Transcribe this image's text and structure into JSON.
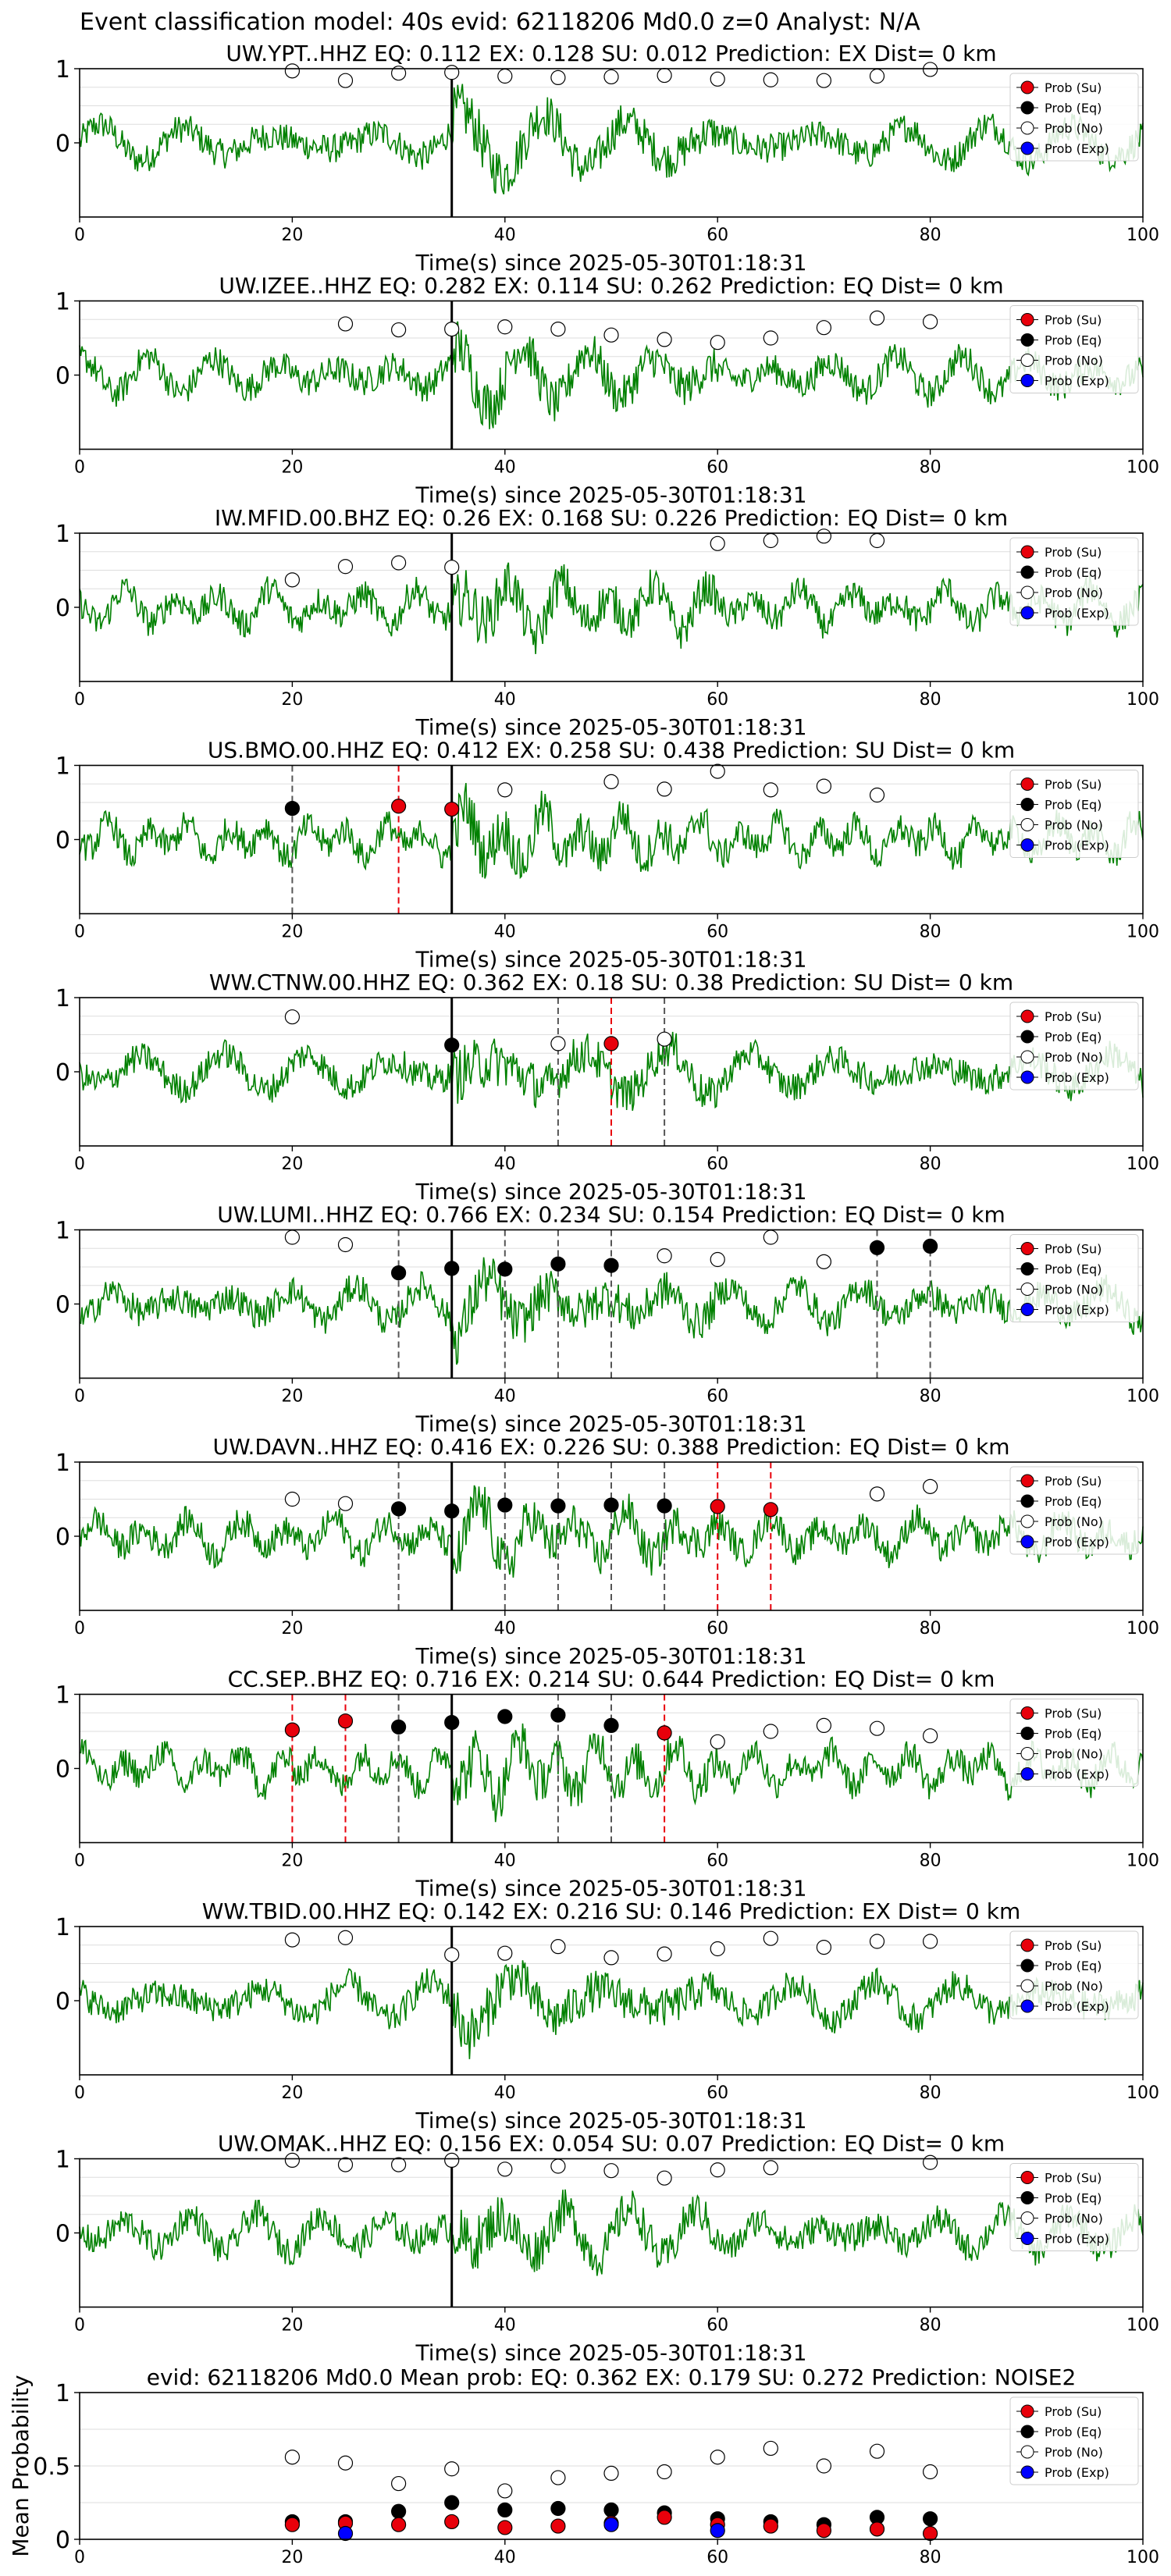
{
  "figure_title": "Event classification model: 40s evid: 62118206 Md0.0 z=0 Analyst: N/A",
  "colors": {
    "waveform": "#008000",
    "su": "#e8000b",
    "eq": "#000000",
    "no": "#ffffff",
    "exp": "#0000ff",
    "grid": "#dddddd",
    "pick": "#000000"
  },
  "legend": [
    "Prob (Su)",
    "Prob (Eq)",
    "Prob (No)",
    "Prob (Exp)"
  ],
  "chart_data": [
    {
      "type": "line",
      "title": "UW.YPT..HHZ    EQ: 0.112  EX: 0.128  SU: 0.012   Prediction: EX    Dist= 0 km",
      "xlabel": "Time(s) since 2025-05-30T01:18:31",
      "xlim": [
        0,
        100
      ],
      "ylim": [
        -1,
        1
      ],
      "xticks": [
        0,
        20,
        40,
        60,
        80,
        100
      ],
      "yticks": [
        1,
        0
      ],
      "pick_time": 35,
      "legend_position": "upper-right",
      "x": [
        20,
        25,
        30,
        35,
        40,
        45,
        50,
        55,
        60,
        65,
        70,
        75,
        80
      ],
      "su": [],
      "eq": [],
      "no": [
        0.97,
        0.84,
        0.94,
        0.95,
        0.9,
        0.88,
        0.89,
        0.91,
        0.86,
        0.85,
        0.84,
        0.9,
        0.99
      ],
      "exp": [],
      "vlines": []
    },
    {
      "type": "line",
      "title": "UW.IZEE..HHZ   EQ: 0.282  EX: 0.114  SU: 0.262   Prediction: EQ    Dist= 0 km",
      "xlabel": "Time(s) since 2025-05-30T01:18:31",
      "xlim": [
        0,
        100
      ],
      "ylim": [
        -1,
        1
      ],
      "xticks": [
        0,
        20,
        40,
        60,
        80,
        100
      ],
      "yticks": [
        1,
        0
      ],
      "pick_time": 35,
      "legend_position": "upper-right",
      "x": [
        25,
        30,
        35,
        40,
        45,
        50,
        55,
        60,
        65,
        70,
        75,
        80
      ],
      "su": [],
      "eq": [],
      "no": [
        0.69,
        0.61,
        0.62,
        0.65,
        0.62,
        0.54,
        0.48,
        0.44,
        0.5,
        0.64,
        0.77,
        0.72
      ],
      "exp": [],
      "vlines": []
    },
    {
      "type": "line",
      "title": "IW.MFID.00.BHZ   EQ: 0.26  EX: 0.168  SU: 0.226   Prediction: EQ    Dist= 0 km",
      "xlabel": "Time(s) since 2025-05-30T01:18:31",
      "xlim": [
        0,
        100
      ],
      "ylim": [
        -1,
        1
      ],
      "xticks": [
        0,
        20,
        40,
        60,
        80,
        100
      ],
      "yticks": [
        1,
        0
      ],
      "pick_time": 35,
      "legend_position": "upper-right",
      "x": [
        20,
        25,
        30,
        35,
        60,
        65,
        70,
        75
      ],
      "su": [],
      "eq": [],
      "no": [
        0.37,
        0.55,
        0.6,
        0.54,
        0.86,
        0.9,
        0.96,
        0.9
      ],
      "exp": [],
      "vlines": []
    },
    {
      "type": "line",
      "title": "US.BMO.00.HHZ   EQ: 0.412  EX: 0.258  SU: 0.438   Prediction: SU    Dist= 0 km",
      "xlabel": "Time(s) since 2025-05-30T01:18:31",
      "xlim": [
        0,
        100
      ],
      "ylim": [
        -1,
        1
      ],
      "xticks": [
        0,
        20,
        40,
        60,
        80,
        100
      ],
      "yticks": [
        1,
        0
      ],
      "pick_time": 35,
      "legend_position": "upper-right",
      "x": [
        20,
        30,
        35,
        40,
        50,
        55,
        60,
        65,
        70,
        75
      ],
      "su": [
        null,
        0.45,
        0.41,
        null,
        null,
        null,
        null,
        null,
        null,
        null
      ],
      "eq": [
        0.42,
        null,
        null,
        null,
        null,
        null,
        null,
        null,
        null,
        null
      ],
      "no": [
        null,
        null,
        null,
        0.67,
        0.78,
        0.68,
        0.92,
        0.67,
        0.72,
        0.6
      ],
      "exp": [],
      "vlines": [
        {
          "x": 20,
          "color": "eq"
        },
        {
          "x": 30,
          "color": "su"
        }
      ]
    },
    {
      "type": "line",
      "title": "WW.CTNW.00.HHZ   EQ: 0.362  EX: 0.18  SU: 0.38   Prediction: SU    Dist= 0 km",
      "xlabel": "Time(s) since 2025-05-30T01:18:31",
      "xlim": [
        0,
        100
      ],
      "ylim": [
        -1,
        1
      ],
      "xticks": [
        0,
        20,
        40,
        60,
        80,
        100
      ],
      "yticks": [
        1,
        0
      ],
      "pick_time": 35,
      "legend_position": "upper-right",
      "x": [
        20,
        35,
        45,
        50,
        55
      ],
      "su": [
        null,
        null,
        null,
        0.38,
        null
      ],
      "eq": [
        null,
        0.36,
        null,
        null,
        null
      ],
      "no": [
        0.74,
        null,
        0.38,
        null,
        0.44
      ],
      "exp": [],
      "vlines": [
        {
          "x": 45,
          "color": "eq"
        },
        {
          "x": 50,
          "color": "su"
        },
        {
          "x": 55,
          "color": "eq"
        }
      ]
    },
    {
      "type": "line",
      "title": "UW.LUMI..HHZ   EQ: 0.766  EX: 0.234  SU: 0.154   Prediction: EQ    Dist= 0 km",
      "xlabel": "Time(s) since 2025-05-30T01:18:31",
      "xlim": [
        0,
        100
      ],
      "ylim": [
        -1,
        1
      ],
      "xticks": [
        0,
        20,
        40,
        60,
        80,
        100
      ],
      "yticks": [
        1,
        0
      ],
      "pick_time": 35,
      "legend_position": "upper-right",
      "x": [
        20,
        25,
        30,
        35,
        40,
        45,
        50,
        55,
        60,
        65,
        70,
        75,
        80
      ],
      "su": [],
      "eq": [
        null,
        null,
        0.42,
        0.48,
        0.47,
        0.54,
        0.52,
        null,
        null,
        null,
        null,
        0.76,
        0.78
      ],
      "no": [
        0.9,
        0.8,
        null,
        null,
        null,
        null,
        null,
        0.65,
        0.6,
        0.9,
        0.57,
        null,
        null
      ],
      "exp": [],
      "vlines": [
        {
          "x": 30,
          "color": "eq"
        },
        {
          "x": 40,
          "color": "eq"
        },
        {
          "x": 45,
          "color": "eq"
        },
        {
          "x": 50,
          "color": "eq"
        },
        {
          "x": 75,
          "color": "eq"
        },
        {
          "x": 80,
          "color": "eq"
        }
      ]
    },
    {
      "type": "line",
      "title": "UW.DAVN..HHZ   EQ: 0.416  EX: 0.226  SU: 0.388   Prediction: EQ    Dist= 0 km",
      "xlabel": "Time(s) since 2025-05-30T01:18:31",
      "xlim": [
        0,
        100
      ],
      "ylim": [
        -1,
        1
      ],
      "xticks": [
        0,
        20,
        40,
        60,
        80,
        100
      ],
      "yticks": [
        1,
        0
      ],
      "pick_time": 35,
      "legend_position": "upper-right",
      "x": [
        20,
        25,
        30,
        35,
        40,
        45,
        50,
        55,
        60,
        65,
        75,
        80
      ],
      "su": [
        null,
        null,
        null,
        null,
        null,
        null,
        null,
        null,
        0.4,
        0.36,
        null,
        null
      ],
      "eq": [
        null,
        null,
        0.37,
        0.34,
        0.42,
        0.41,
        0.42,
        0.41,
        null,
        null,
        null,
        null
      ],
      "no": [
        0.5,
        0.44,
        null,
        null,
        null,
        null,
        null,
        null,
        null,
        null,
        0.57,
        0.67
      ],
      "exp": [],
      "vlines": [
        {
          "x": 30,
          "color": "eq"
        },
        {
          "x": 40,
          "color": "eq"
        },
        {
          "x": 45,
          "color": "eq"
        },
        {
          "x": 50,
          "color": "eq"
        },
        {
          "x": 55,
          "color": "eq"
        },
        {
          "x": 60,
          "color": "su"
        },
        {
          "x": 65,
          "color": "su"
        }
      ]
    },
    {
      "type": "line",
      "title": "CC.SEP..BHZ   EQ: 0.716  EX: 0.214  SU: 0.644   Prediction: EQ    Dist= 0 km",
      "xlabel": "Time(s) since 2025-05-30T01:18:31",
      "xlim": [
        0,
        100
      ],
      "ylim": [
        -1,
        1
      ],
      "xticks": [
        0,
        20,
        40,
        60,
        80,
        100
      ],
      "yticks": [
        1,
        0
      ],
      "pick_time": 35,
      "legend_position": "upper-right",
      "x": [
        20,
        25,
        30,
        35,
        40,
        45,
        50,
        55,
        60,
        65,
        70,
        75,
        80
      ],
      "su": [
        0.52,
        0.64,
        null,
        null,
        null,
        null,
        null,
        0.48,
        null,
        null,
        null,
        null,
        null
      ],
      "eq": [
        null,
        null,
        0.56,
        0.62,
        0.7,
        0.72,
        0.58,
        null,
        null,
        null,
        null,
        null,
        null
      ],
      "no": [
        null,
        null,
        null,
        null,
        null,
        null,
        null,
        null,
        0.36,
        0.5,
        0.58,
        0.54,
        0.44
      ],
      "exp": [],
      "vlines": [
        {
          "x": 20,
          "color": "su"
        },
        {
          "x": 25,
          "color": "su"
        },
        {
          "x": 30,
          "color": "eq"
        },
        {
          "x": 45,
          "color": "eq"
        },
        {
          "x": 50,
          "color": "eq"
        },
        {
          "x": 55,
          "color": "su"
        }
      ]
    },
    {
      "type": "line",
      "title": "WW.TBID.00.HHZ   EQ: 0.142  EX: 0.216  SU: 0.146   Prediction: EX    Dist= 0 km",
      "xlabel": "Time(s) since 2025-05-30T01:18:31",
      "xlim": [
        0,
        100
      ],
      "ylim": [
        -1,
        1
      ],
      "xticks": [
        0,
        20,
        40,
        60,
        80,
        100
      ],
      "yticks": [
        1,
        0
      ],
      "pick_time": 35,
      "legend_position": "upper-right",
      "x": [
        20,
        25,
        35,
        40,
        45,
        50,
        55,
        60,
        65,
        70,
        75,
        80
      ],
      "su": [],
      "eq": [],
      "no": [
        0.82,
        0.85,
        0.62,
        0.64,
        0.73,
        0.58,
        0.63,
        0.7,
        0.84,
        0.72,
        0.8,
        0.8
      ],
      "exp": [],
      "vlines": []
    },
    {
      "type": "line",
      "title": "UW.OMAK..HHZ   EQ: 0.156  EX: 0.054  SU: 0.07   Prediction: EQ    Dist= 0 km",
      "xlabel": "Time(s) since 2025-05-30T01:18:31",
      "xlim": [
        0,
        100
      ],
      "ylim": [
        -1,
        1
      ],
      "xticks": [
        0,
        20,
        40,
        60,
        80,
        100
      ],
      "yticks": [
        1,
        0
      ],
      "pick_time": 35,
      "legend_position": "upper-right",
      "x": [
        20,
        25,
        30,
        35,
        40,
        45,
        50,
        55,
        60,
        65,
        80
      ],
      "su": [],
      "eq": [],
      "no": [
        0.98,
        0.92,
        0.92,
        0.98,
        0.86,
        0.9,
        0.84,
        0.74,
        0.85,
        0.88,
        0.95
      ],
      "exp": [],
      "vlines": []
    },
    {
      "type": "scatter",
      "title": "evid: 62118206  Md0.0   Mean prob:   EQ: 0.362  EX: 0.179  SU: 0.272   Prediction: NOISE2",
      "xlabel": "",
      "ylabel": "Mean Probability",
      "xlim": [
        0,
        100
      ],
      "ylim": [
        0,
        1
      ],
      "xticks": [
        0,
        20,
        40,
        60,
        80,
        100
      ],
      "yticks": [
        1.0,
        0.5,
        0.0
      ],
      "legend_position": "upper-right",
      "x": [
        20,
        25,
        30,
        35,
        40,
        45,
        50,
        55,
        60,
        65,
        70,
        75,
        80
      ],
      "su": [
        0.1,
        0.11,
        0.1,
        0.12,
        0.08,
        0.09,
        0.11,
        0.15,
        0.1,
        0.09,
        0.06,
        0.07,
        0.04
      ],
      "eq": [
        0.12,
        0.12,
        0.19,
        0.25,
        0.2,
        0.21,
        0.2,
        0.18,
        0.14,
        0.12,
        0.1,
        0.15,
        0.14
      ],
      "no": [
        0.56,
        0.52,
        0.38,
        0.48,
        0.33,
        0.42,
        0.45,
        0.46,
        0.56,
        0.62,
        0.5,
        0.6,
        0.46
      ],
      "exp": [
        null,
        0.04,
        null,
        null,
        null,
        null,
        0.1,
        null,
        0.06,
        null,
        null,
        null,
        null
      ]
    }
  ]
}
